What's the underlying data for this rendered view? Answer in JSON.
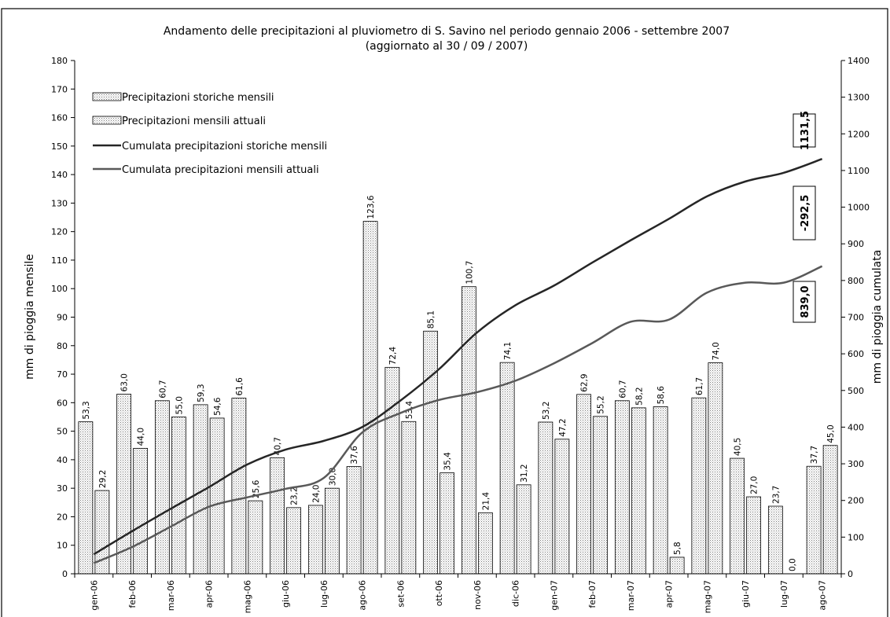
{
  "chart_data": {
    "type": "bar",
    "title": "Andamento delle precipitazioni al pluviometro di S. Savino nel periodo gennaio 2006 - settembre 2007",
    "subtitle": "(aggiornato al 30 / 09 / 2007)",
    "ylabel": "mm di pioggia mensile",
    "y2label": "mm di pioggia cumulata",
    "ylim": [
      0,
      180
    ],
    "y2lim": [
      0,
      1400
    ],
    "yticks": [
      "0",
      "10",
      "20",
      "30",
      "40",
      "50",
      "60",
      "70",
      "80",
      "90",
      "100",
      "110",
      "120",
      "130",
      "140",
      "150",
      "160",
      "170",
      "180"
    ],
    "y2ticks": [
      "0",
      "100",
      "200",
      "300",
      "400",
      "500",
      "600",
      "700",
      "800",
      "900",
      "1000",
      "1100",
      "1200",
      "1300",
      "1400"
    ],
    "categories": [
      "gen-06",
      "feb-06",
      "mar-06",
      "apr-06",
      "mag-06",
      "giu-06",
      "lug-06",
      "ago-06",
      "set-06",
      "ott-06",
      "nov-06",
      "dic-06",
      "gen-07",
      "feb-07",
      "mar-07",
      "apr-07",
      "mag-07",
      "giu-07",
      "lug-07",
      "ago-07"
    ],
    "series": [
      {
        "name": "Precipitazioni storiche mensili",
        "kind": "bar",
        "values": [
          53.3,
          63.0,
          60.7,
          59.3,
          61.6,
          40.7,
          24.0,
          37.6,
          72.4,
          85.1,
          100.7,
          74.1,
          53.2,
          62.9,
          60.7,
          58.6,
          61.7,
          40.5,
          23.7,
          37.7
        ],
        "labels": [
          "53,3",
          "63,0",
          "60,7",
          "59,3",
          "61,6",
          "40,7",
          "24,0",
          "37,6",
          "72,4",
          "85,1",
          "100,7",
          "74,1",
          "53,2",
          "62,9",
          "60,7",
          "58,6",
          "61,7",
          "40,5",
          "23,7",
          "37,7"
        ]
      },
      {
        "name": "Precipitazioni mensili attuali",
        "kind": "bar",
        "values": [
          29.2,
          44.0,
          55.0,
          54.6,
          25.6,
          23.2,
          30.0,
          123.6,
          53.4,
          35.4,
          21.4,
          31.2,
          47.2,
          55.2,
          58.2,
          5.8,
          74.0,
          27.0,
          0.0,
          45.0
        ],
        "labels": [
          "29,2",
          "44,0",
          "55,0",
          "54,6",
          "25,6",
          "23,2",
          "30,0",
          "123,6",
          "53,4",
          "35,4",
          "21,4",
          "31,2",
          "47,2",
          "55,2",
          "58,2",
          "5,8",
          "74,0",
          "27,0",
          "0,0",
          "45,0"
        ]
      },
      {
        "name": "Cumulata precipitazioni storiche mensili",
        "kind": "line",
        "axis": "right",
        "color": "#262626",
        "values": [
          53.3,
          116.3,
          177.0,
          236.3,
          297.9,
          338.6,
          362.6,
          400.2,
          472.6,
          557.7,
          658.4,
          732.5,
          785.7,
          848.6,
          909.3,
          967.9,
          1029.6,
          1070.1,
          1093.8,
          1131.5
        ]
      },
      {
        "name": "Cumulata precipitazioni mensili attuali",
        "kind": "line",
        "axis": "right",
        "color": "#595959",
        "values": [
          29.2,
          73.2,
          128.2,
          182.8,
          208.4,
          231.6,
          261.6,
          385.2,
          438.6,
          474.0,
          495.4,
          526.6,
          573.8,
          629.0,
          687.2,
          693.0,
          767.0,
          794.0,
          794.0,
          839.0
        ]
      }
    ],
    "annotations": [
      {
        "text": "1131,5",
        "value": 1131.5
      },
      {
        "text": "-292,5",
        "value": -292.5
      },
      {
        "text": "839,0",
        "value": 839.0
      }
    ],
    "legend": "top-left",
    "grid": false,
    "bar_pattern_color": "#808080"
  }
}
